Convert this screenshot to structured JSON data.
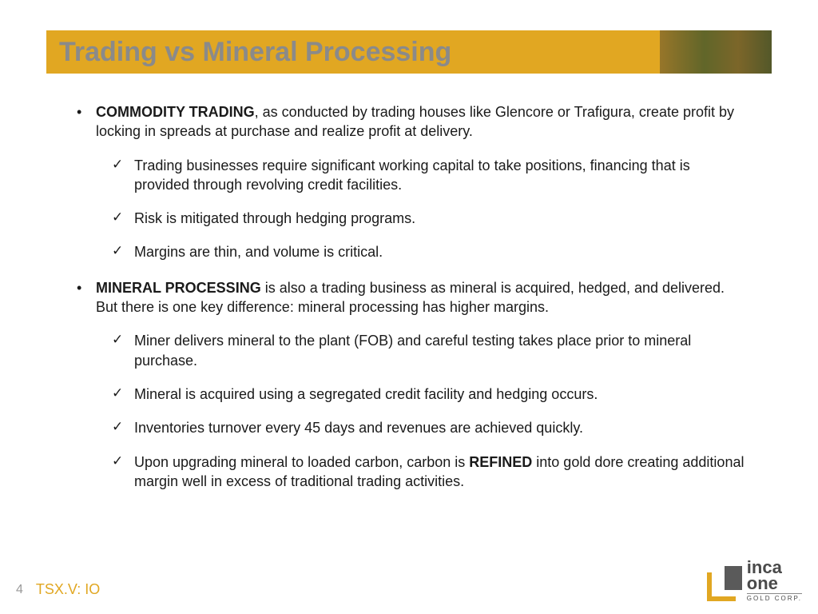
{
  "colors": {
    "accent": "#e1a722",
    "title_text": "#8a8a8a",
    "body_text": "#1a1a1a",
    "page_num": "#9a9a9a",
    "background": "#ffffff"
  },
  "typography": {
    "title_fontsize_pt": 26,
    "body_fontsize_pt": 14,
    "font_family": "Arial"
  },
  "slide": {
    "title": "Trading vs Mineral Processing",
    "page_number": "4",
    "ticker": "TSX.V: IO"
  },
  "logo": {
    "line1": "inca",
    "line2": "one",
    "line3": "GOLD CORP."
  },
  "bullets": [
    {
      "lead_bold": "COMMODITY TRADING",
      "lead_rest": ", as conducted by trading houses like Glencore or Trafigura, create profit by locking in spreads at purchase and realize profit at delivery.",
      "subs": [
        "Trading businesses require significant working capital to take positions, financing that is provided through revolving credit facilities.",
        "Risk is mitigated through hedging programs.",
        "Margins are thin, and volume is critical."
      ]
    },
    {
      "lead_bold": "MINERAL PROCESSING",
      "lead_rest": " is also a trading business as mineral is acquired, hedged, and delivered.  But there is one key difference: mineral processing has higher margins.",
      "subs": [
        "Miner delivers mineral to the plant (FOB) and careful testing takes place prior to mineral purchase.",
        "Mineral is acquired using a segregated credit facility and hedging occurs.",
        "Inventories turnover every 45 days and revenues are achieved quickly."
      ],
      "subs_rich_last": {
        "pre": "Upon upgrading mineral to loaded carbon, carbon is ",
        "bold": "REFINED",
        "post": " into gold dore creating additional margin well in excess of traditional trading activities."
      }
    }
  ]
}
